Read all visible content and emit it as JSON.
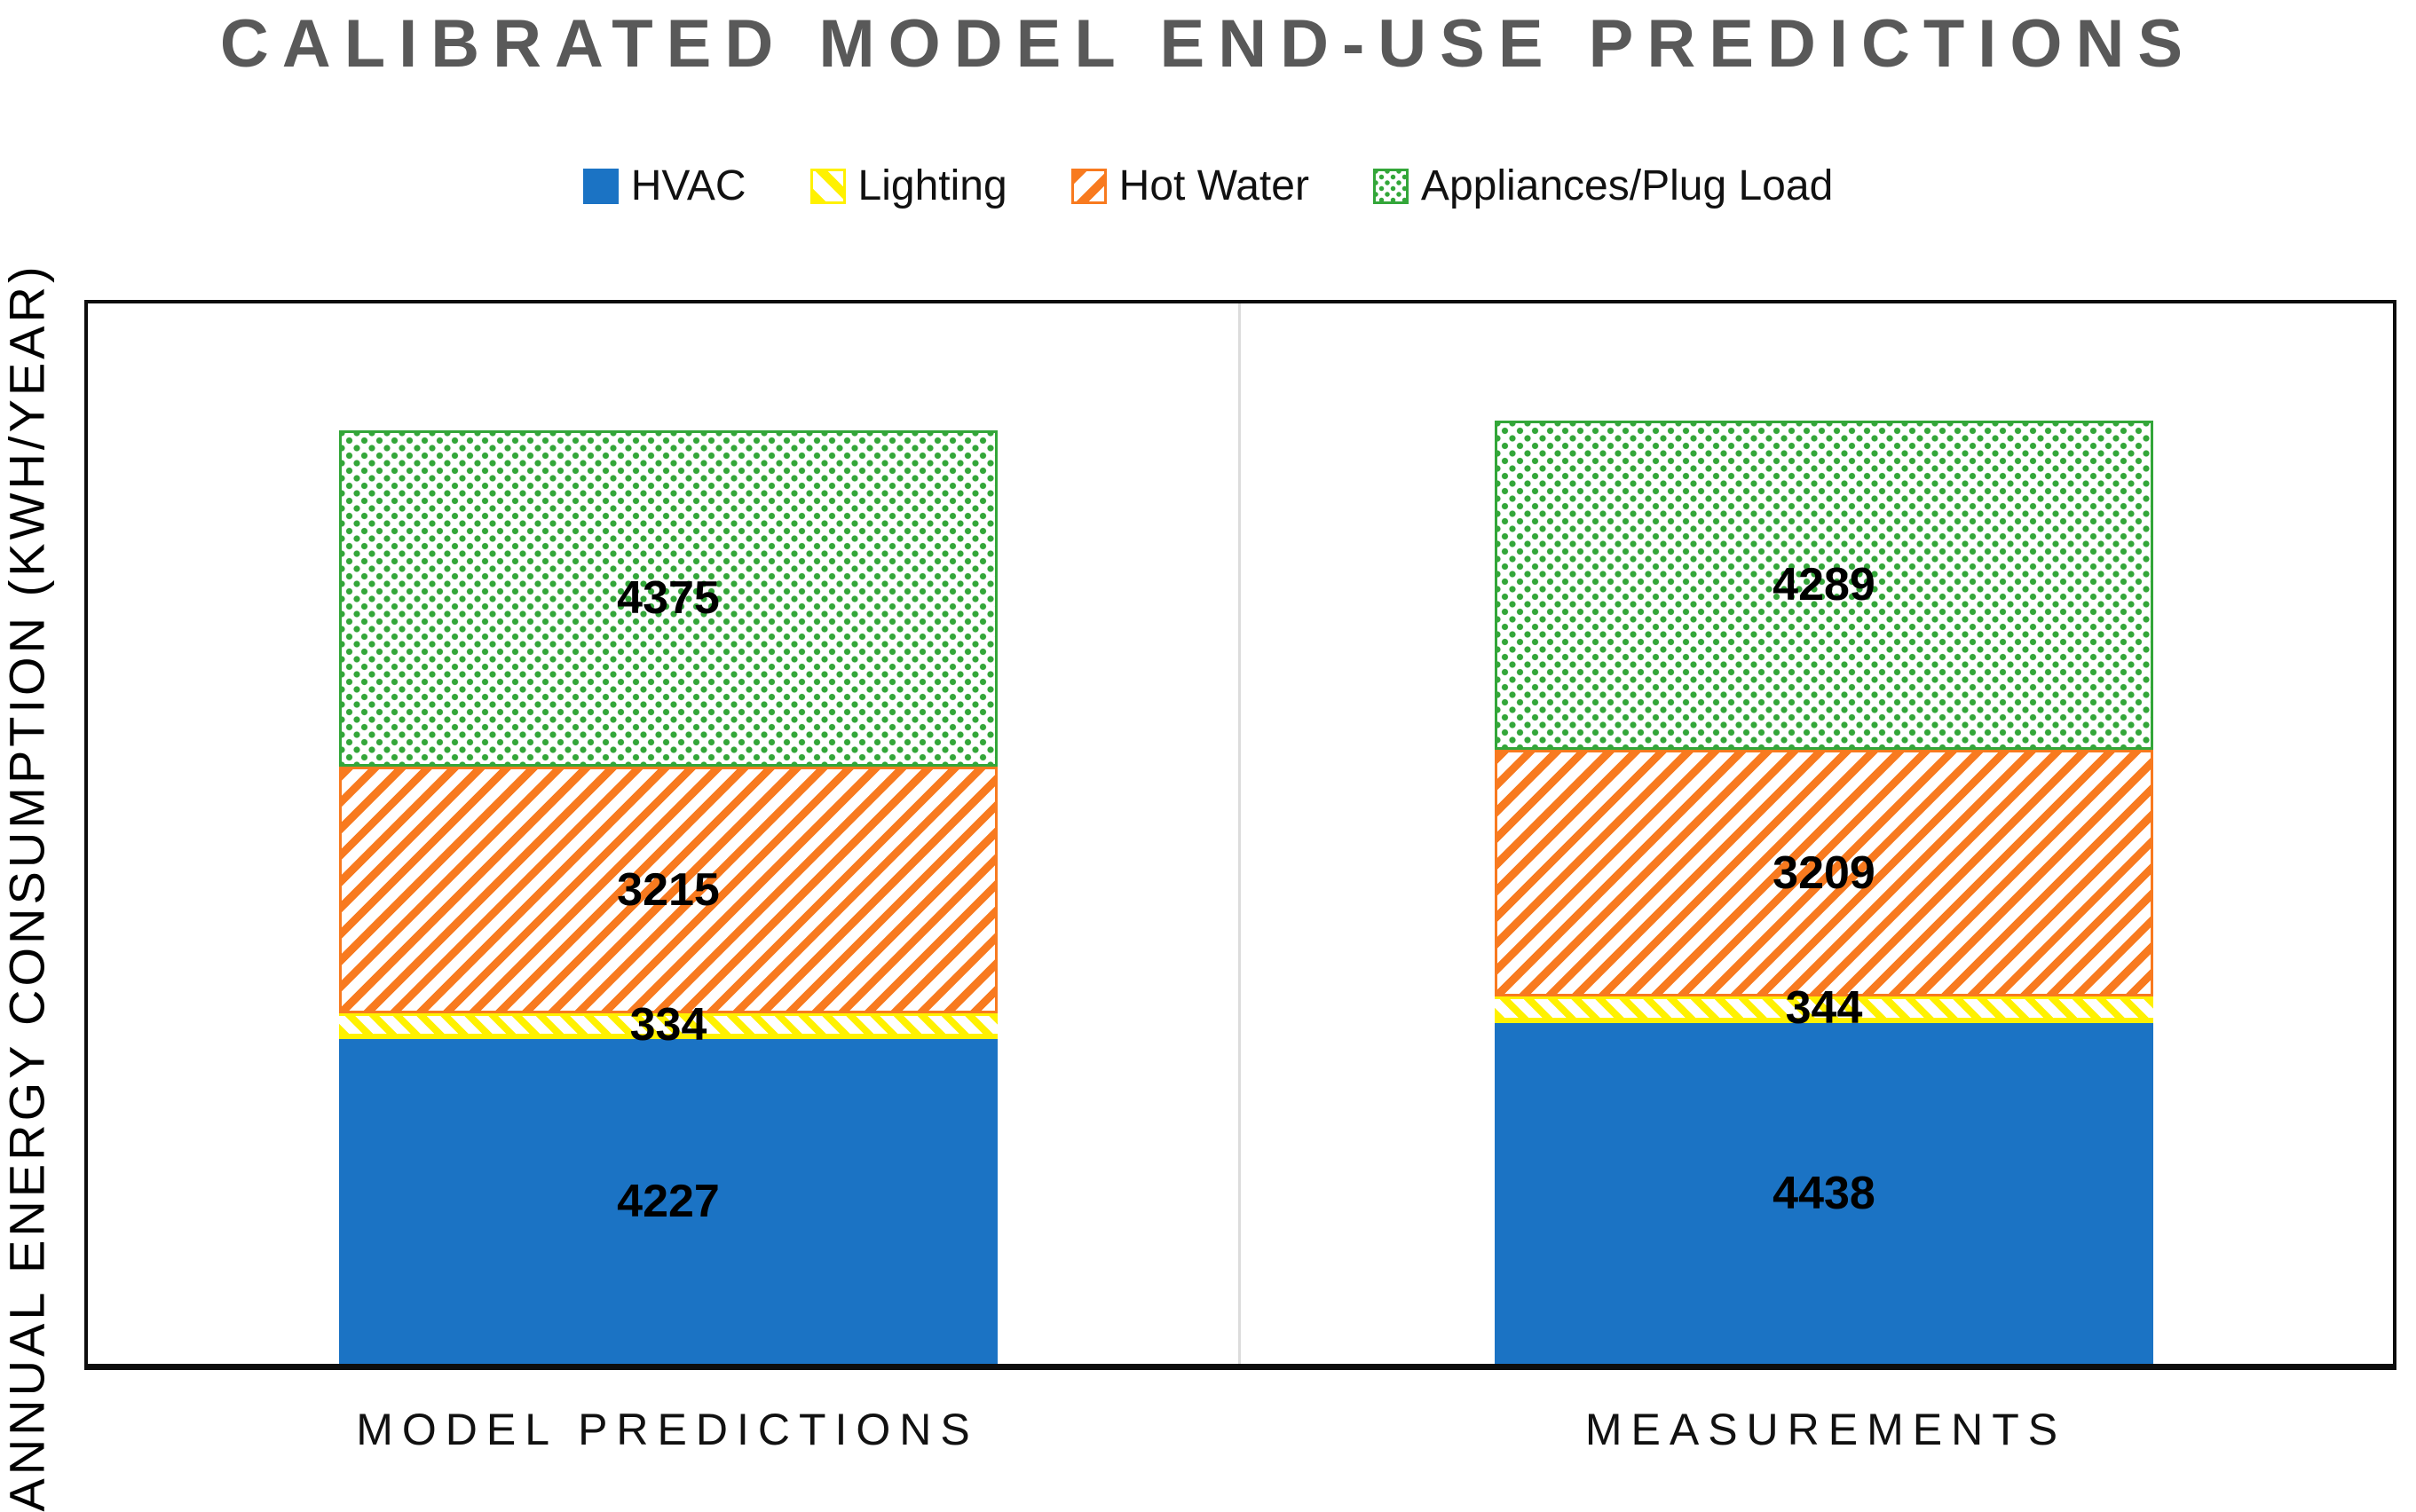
{
  "title": "CALIBRATED MODEL END-USE PREDICTIONS",
  "title_color": "#595959",
  "y_axis_label": "ANNUAL ENERGY CONSUMPTION (KWH/YEAR)",
  "chart_data": {
    "type": "bar",
    "stacked": true,
    "title": "CALIBRATED MODEL END-USE PREDICTIONS",
    "ylabel": "ANNUAL ENERGY CONSUMPTION (KWH/YEAR)",
    "xlabel": "",
    "categories": [
      "MODEL PREDICTIONS",
      "MEASUREMENTS"
    ],
    "series": [
      {
        "name": "HVAC",
        "color": "#1b73c4",
        "pattern": "solid",
        "values": [
          4227,
          4438
        ]
      },
      {
        "name": "Lighting",
        "color": "#fff100",
        "pattern": "diag-down",
        "values": [
          334,
          344
        ]
      },
      {
        "name": "Hot Water",
        "color": "#f87a1f",
        "pattern": "diag-up",
        "values": [
          3215,
          3209
        ]
      },
      {
        "name": "Appliances/Plug Load",
        "color": "#33a639",
        "pattern": "dots",
        "values": [
          4375,
          4289
        ]
      }
    ],
    "legend_position": "top",
    "grid": false,
    "data_labels": true,
    "axis_ticks_visible": false,
    "totals": {
      "MODEL PREDICTIONS": 12151,
      "MEASUREMENTS": 12280
    }
  }
}
